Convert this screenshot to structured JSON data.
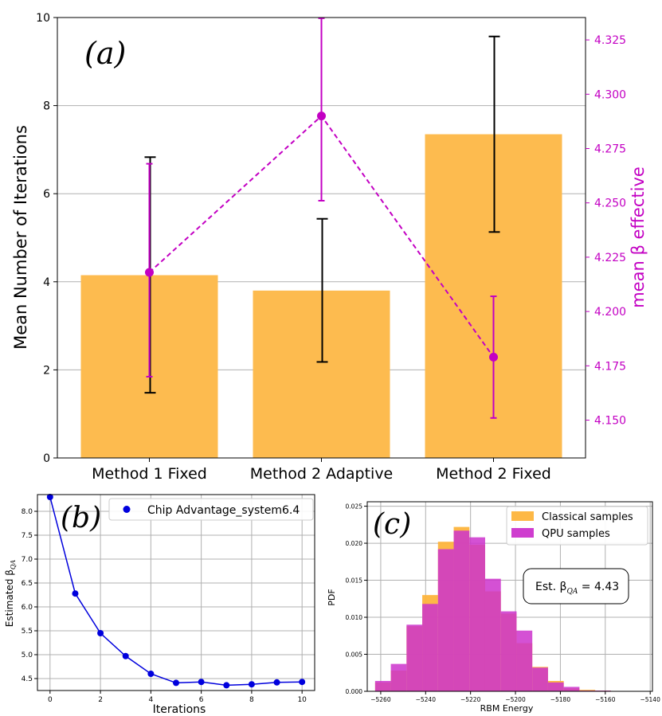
{
  "chart_data": [
    {
      "id": "a",
      "type": "bar",
      "panel_label": "(a)",
      "categories": [
        "Method 1 Fixed",
        "Method 2 Adaptive",
        "Method 2 Fixed"
      ],
      "ylabel": "Mean Number of Iterations",
      "ylim": [
        0,
        10
      ],
      "yticks": [
        0,
        2,
        4,
        6,
        8,
        10
      ],
      "bar_color": "#fdbb4f",
      "bars": {
        "values": [
          4.15,
          3.8,
          7.35
        ],
        "err_low": [
          1.48,
          2.18,
          5.13
        ],
        "err_high": [
          6.83,
          5.43,
          9.57
        ]
      },
      "right_axis": {
        "ylabel": "mean β effective",
        "ylim": [
          4.1326,
          4.3353
        ],
        "yticks": [
          "4.150",
          "4.175",
          "4.200",
          "4.225",
          "4.250",
          "4.275",
          "4.300",
          "4.325"
        ],
        "color": "#c300c3",
        "series": {
          "type": "line",
          "style": "dashed",
          "values": [
            4.218,
            4.29,
            4.179
          ],
          "err_low": [
            4.17,
            4.251,
            4.151
          ],
          "err_high": [
            4.268,
            4.335,
            4.207
          ]
        }
      },
      "grid": "horizontal"
    },
    {
      "id": "b",
      "type": "line",
      "panel_label": "(b)",
      "xlabel": "Iterations",
      "ylabel": "Estimated β_QA",
      "ylabel_main": "Estimated β",
      "ylabel_sub": "QA",
      "xlim": [
        -0.5,
        10.5
      ],
      "ylim": [
        4.25,
        8.35
      ],
      "xticks": [
        "0",
        "2",
        "4",
        "6",
        "8",
        "10"
      ],
      "yticks": [
        "4.5",
        "5.0",
        "5.5",
        "6.0",
        "6.5",
        "7.0",
        "7.5",
        "8.0"
      ],
      "color": "#0000dd",
      "series": [
        {
          "name": "Chip Advantage_system6.4",
          "x": [
            0,
            1,
            2,
            3,
            4,
            5,
            6,
            7,
            8,
            9,
            10
          ],
          "y": [
            8.3,
            6.28,
            5.45,
            4.97,
            4.6,
            4.41,
            4.43,
            4.36,
            4.38,
            4.42,
            4.43
          ]
        }
      ],
      "legend": "top-right",
      "grid": true
    },
    {
      "id": "c",
      "type": "histogram",
      "panel_label": "(c)",
      "xlabel": "RBM Energy",
      "ylabel": "PDF",
      "xlim": [
        -5266,
        -5139
      ],
      "ylim": [
        0,
        0.0256
      ],
      "xticks": [
        "−5260",
        "−5240",
        "−5220",
        "−5200",
        "−5180",
        "−5160",
        "−5140"
      ],
      "yticks": [
        "0.000",
        "0.005",
        "0.010",
        "0.015",
        "0.020",
        "0.025"
      ],
      "bin_edges": [
        -5262.5,
        -5255.5,
        -5248.5,
        -5241.5,
        -5234.5,
        -5227.5,
        -5220.5,
        -5213.5,
        -5206.5,
        -5199.5,
        -5192.5,
        -5185.5,
        -5178.5,
        -5171.5,
        -5164.5,
        -5157.5,
        -5150.5,
        -5143.5
      ],
      "series": [
        {
          "name": "Classical samples",
          "color": "#fdb43c",
          "values": [
            0.0012,
            0.0028,
            0.0088,
            0.013,
            0.0202,
            0.0222,
            0.0198,
            0.0135,
            0.0105,
            0.0065,
            0.0033,
            0.0014,
            0.0004,
            0.0002,
            0.0001,
            0.0,
            0.0
          ]
        },
        {
          "name": "QPU samples",
          "color": "#cc33cc",
          "values": [
            0.0014,
            0.0037,
            0.009,
            0.0118,
            0.0192,
            0.0217,
            0.0208,
            0.0152,
            0.0108,
            0.0082,
            0.0032,
            0.0012,
            0.0006,
            0.0001,
            0.0001,
            0.0,
            0.0
          ]
        }
      ],
      "annotation": "Est. β_QA = 4.43",
      "annotation_pre": "Est. β",
      "annotation_sub": "QA",
      "annotation_post": " = 4.43",
      "legend": "top-right",
      "grid": true
    }
  ]
}
